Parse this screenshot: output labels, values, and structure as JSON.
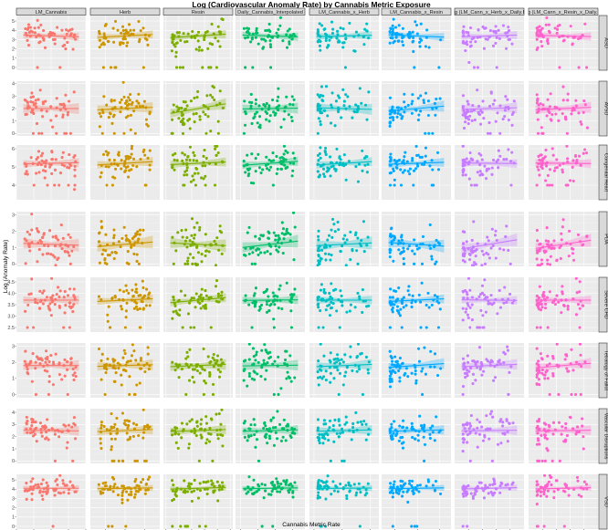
{
  "chart_data": {
    "type": "scatter",
    "title": "Log (Cardiovascular Anomaly Rate) by Cannabis Metric Exposure",
    "xlabel": "Cannabis Metric Rate",
    "ylabel": "Log (Anomaly Rate)",
    "facet_columns": [
      "LM_Cannabis",
      "Herb",
      "Resin",
      "Daily_Cannabis_Interpolated",
      "LM_Cannabis_x_Herb",
      "LM_Cannabis_x_Resin",
      "g (LM_Cann_x_Herb_x_Daily.I",
      "g (LM_Cann_x_Resin_x_Daily.I"
    ],
    "facet_rows": [
      "ASD",
      "AVSD",
      "Congenital Heart",
      "PDA",
      "Severe CHD",
      "Tetralogy of Fallot",
      "Vascular Disruptions",
      "VSD"
    ],
    "column_colors": [
      "#f8766d",
      "#cd9600",
      "#7cae00",
      "#00be67",
      "#00bfc4",
      "#00a9ff",
      "#c77cff",
      "#ff61cc"
    ],
    "x_axes": [
      {
        "range": [
          0,
          0.1
        ],
        "ticks": [
          0,
          0.025,
          0.05,
          0.075,
          0.1
        ],
        "tick_labels": [
          "0.000",
          "0.025",
          "0.050",
          "0.075",
          "0.100"
        ]
      },
      {
        "range": [
          0.01,
          0.15
        ],
        "ticks": [
          0.04,
          0.08,
          0.12
        ],
        "tick_labels": [
          "0.04",
          "0.08",
          "0.12"
        ]
      },
      {
        "range": [
          -0.12,
          0.42
        ],
        "ticks": [
          -0.1,
          0,
          0.1,
          0.2,
          0.3,
          0.4
        ],
        "tick_labels": [
          "-0.1",
          "0.0",
          "0.1",
          "0.2",
          "0.3",
          "0.4"
        ]
      },
      {
        "range": [
          -0.003,
          0.037
        ],
        "ticks": [
          0,
          0.01,
          0.02,
          0.03
        ],
        "tick_labels": [
          "0.00",
          "0.01",
          "0.02",
          "0.03"
        ]
      },
      {
        "range": [
          -0.008,
          0.115
        ],
        "ticks": [
          0,
          0.05,
          0.1
        ],
        "tick_labels": [
          "0.00",
          "0.05",
          "0.10"
        ]
      },
      {
        "range": [
          -0.12,
          0.5
        ],
        "ticks": [
          0,
          0.2,
          0.4
        ],
        "tick_labels": [
          "0.0",
          "0.2",
          "0.4"
        ]
      },
      {
        "range": [
          -0.2,
          0.8
        ],
        "ticks": [
          0,
          0.2,
          0.4,
          0.6
        ],
        "tick_labels": [
          "0.0",
          "0.2",
          "0.4",
          "0.6"
        ]
      },
      {
        "range": [
          -0.2,
          0.8
        ],
        "ticks": [
          0,
          0.2,
          0.4,
          0.6
        ],
        "tick_labels": [
          "0.0",
          "0.2",
          "0.4",
          "0.6"
        ]
      }
    ],
    "y_axes": [
      {
        "range": [
          -0.3,
          5.6
        ],
        "ticks": [
          0,
          1,
          2,
          3,
          4,
          5
        ],
        "tick_labels": [
          "0",
          "1",
          "2",
          "3",
          "4",
          "5"
        ]
      },
      {
        "range": [
          -0.2,
          4.2
        ],
        "ticks": [
          0,
          1,
          2,
          3,
          4
        ],
        "tick_labels": [
          "0",
          "1",
          "2",
          "3",
          "4"
        ]
      },
      {
        "range": [
          3.2,
          6.2
        ],
        "ticks": [
          4,
          5,
          6
        ],
        "tick_labels": [
          "4",
          "5",
          "6"
        ]
      },
      {
        "range": [
          -0.15,
          3.2
        ],
        "ticks": [
          0,
          1,
          2,
          3
        ],
        "tick_labels": [
          "0",
          "1",
          "2",
          "3"
        ]
      },
      {
        "range": [
          2.3,
          4.7
        ],
        "ticks": [
          2.5,
          3.0,
          3.5,
          4.0,
          4.5
        ],
        "tick_labels": [
          "2.5",
          "3.0",
          "3.5",
          "4.0",
          "4.5"
        ]
      },
      {
        "range": [
          -0.2,
          3.2
        ],
        "ticks": [
          0,
          1,
          2,
          3
        ],
        "tick_labels": [
          "0",
          "1",
          "2",
          "3"
        ]
      },
      {
        "range": [
          -0.2,
          4.3
        ],
        "ticks": [
          0,
          1,
          2,
          3,
          4
        ],
        "tick_labels": [
          "0",
          "1",
          "2",
          "3",
          "4"
        ]
      },
      {
        "range": [
          -0.3,
          5.6
        ],
        "ticks": [
          0,
          1,
          2,
          3,
          4,
          5
        ],
        "tick_labels": [
          "0",
          "1",
          "2",
          "3",
          "4",
          "5"
        ]
      }
    ],
    "series_means": [
      3.4,
      2.0,
      5.2,
      1.2,
      3.7,
      1.8,
      2.5,
      4.1
    ],
    "series_spread": [
      0.8,
      0.8,
      0.45,
      0.7,
      0.35,
      0.6,
      0.7,
      0.6
    ],
    "trend_slopes": [
      [
        -0.3,
        0.5,
        0.6,
        -0.3,
        0.2,
        -0.4,
        0.3,
        -0.2
      ],
      [
        0.0,
        0.3,
        1.2,
        0.1,
        -0.2,
        0.6,
        0.2,
        0.3
      ],
      [
        0.2,
        0.5,
        0.4,
        0.6,
        0.5,
        0.3,
        -0.1,
        -0.1
      ],
      [
        -0.2,
        0.5,
        -0.3,
        0.7,
        0.3,
        -0.4,
        1.0,
        0.9
      ],
      [
        0.0,
        0.4,
        0.8,
        0.1,
        0.0,
        0.4,
        -0.1,
        0.0
      ],
      [
        0.0,
        0.2,
        0.3,
        0.1,
        0.3,
        0.5,
        0.3,
        0.6
      ],
      [
        -0.1,
        0.3,
        0.3,
        0.2,
        0.2,
        0.2,
        0.1,
        0.1
      ],
      [
        0.0,
        0.2,
        0.4,
        0.2,
        0.1,
        0.2,
        0.3,
        0.3
      ]
    ],
    "points_per_panel": 60,
    "grid": true,
    "legend": "none",
    "smooth": "linear fit with confidence band"
  }
}
